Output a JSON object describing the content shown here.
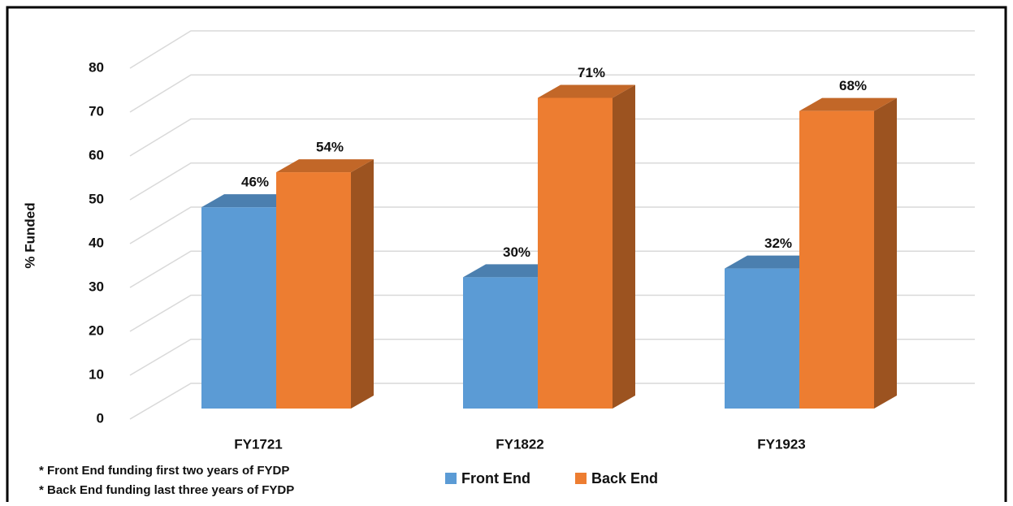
{
  "chart_data": {
    "type": "bar3d",
    "y_axis_label": "% Funded",
    "categories": [
      "FY1721",
      "FY1822",
      "FY1923"
    ],
    "series": [
      {
        "name": "Front End",
        "color": "#5b9bd5",
        "values": [
          46,
          30,
          32
        ],
        "value_labels": [
          "46%",
          "30%",
          "32%"
        ]
      },
      {
        "name": "Back End",
        "color": "#ed7d31",
        "values": [
          54,
          71,
          68
        ],
        "value_labels": [
          "54%",
          "71%",
          "68%"
        ]
      }
    ],
    "ylim": [
      0,
      80
    ],
    "yticks": [
      0,
      10,
      20,
      30,
      40,
      50,
      60,
      70,
      80
    ],
    "grid": true,
    "legend": "bottom",
    "notes": [
      "* Front End funding first two years of FYDP",
      "* Back End funding last three years of FYDP"
    ]
  }
}
